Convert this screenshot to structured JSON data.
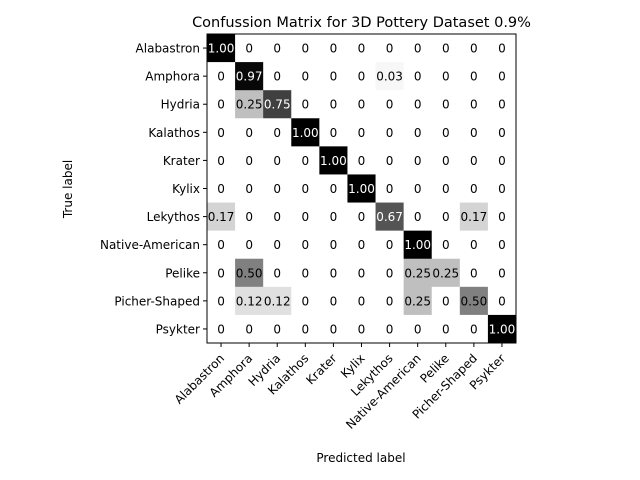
{
  "chart_data": {
    "type": "heatmap",
    "title": "Confussion Matrix for 3D Pottery Dataset 0.9%",
    "xlabel": "Predicted label",
    "ylabel": "True label",
    "categories": [
      "Alabastron",
      "Amphora",
      "Hydria",
      "Kalathos",
      "Krater",
      "Kylix",
      "Lekythos",
      "Native-American",
      "Pelike",
      "Picher-Shaped",
      "Psykter"
    ],
    "labels": [
      [
        "1.00",
        "0",
        "0",
        "0",
        "0",
        "0",
        "0",
        "0",
        "0",
        "0",
        "0"
      ],
      [
        "0",
        "0.97",
        "0",
        "0",
        "0",
        "0",
        "0.03",
        "0",
        "0",
        "0",
        "0"
      ],
      [
        "0",
        "0.25",
        "0.75",
        "0",
        "0",
        "0",
        "0",
        "0",
        "0",
        "0",
        "0"
      ],
      [
        "0",
        "0",
        "0",
        "1.00",
        "0",
        "0",
        "0",
        "0",
        "0",
        "0",
        "0"
      ],
      [
        "0",
        "0",
        "0",
        "0",
        "1.00",
        "0",
        "0",
        "0",
        "0",
        "0",
        "0"
      ],
      [
        "0",
        "0",
        "0",
        "0",
        "0",
        "1.00",
        "0",
        "0",
        "0",
        "0",
        "0"
      ],
      [
        "0.17",
        "0",
        "0",
        "0",
        "0",
        "0",
        "0.67",
        "0",
        "0",
        "0.17",
        "0"
      ],
      [
        "0",
        "0",
        "0",
        "0",
        "0",
        "0",
        "0",
        "1.00",
        "0",
        "0",
        "0"
      ],
      [
        "0",
        "0.50",
        "0",
        "0",
        "0",
        "0",
        "0",
        "0.25",
        "0.25",
        "0",
        "0"
      ],
      [
        "0",
        "0.12",
        "0.12",
        "0",
        "0",
        "0",
        "0",
        "0.25",
        "0",
        "0.50",
        "0"
      ],
      [
        "0",
        "0",
        "0",
        "0",
        "0",
        "0",
        "0",
        "0",
        "0",
        "0",
        "1.00"
      ]
    ],
    "values": [
      [
        1.0,
        0,
        0,
        0,
        0,
        0,
        0,
        0,
        0,
        0,
        0
      ],
      [
        0,
        0.97,
        0,
        0,
        0,
        0,
        0.03,
        0,
        0,
        0,
        0
      ],
      [
        0,
        0.25,
        0.75,
        0,
        0,
        0,
        0,
        0,
        0,
        0,
        0
      ],
      [
        0,
        0,
        0,
        1.0,
        0,
        0,
        0,
        0,
        0,
        0,
        0
      ],
      [
        0,
        0,
        0,
        0,
        1.0,
        0,
        0,
        0,
        0,
        0,
        0
      ],
      [
        0,
        0,
        0,
        0,
        0,
        1.0,
        0,
        0,
        0,
        0,
        0
      ],
      [
        0.17,
        0,
        0,
        0,
        0,
        0,
        0.67,
        0,
        0,
        0.17,
        0
      ],
      [
        0,
        0,
        0,
        0,
        0,
        0,
        0,
        1.0,
        0,
        0,
        0
      ],
      [
        0,
        0.5,
        0,
        0,
        0,
        0,
        0,
        0.25,
        0.25,
        0,
        0
      ],
      [
        0,
        0.12,
        0.12,
        0,
        0,
        0,
        0,
        0.25,
        0,
        0.5,
        0
      ],
      [
        0,
        0,
        0,
        0,
        0,
        0,
        0,
        0,
        0,
        0,
        1.0
      ]
    ],
    "colormap": "greys",
    "vmin": 0,
    "vmax": 1,
    "grid": false
  }
}
